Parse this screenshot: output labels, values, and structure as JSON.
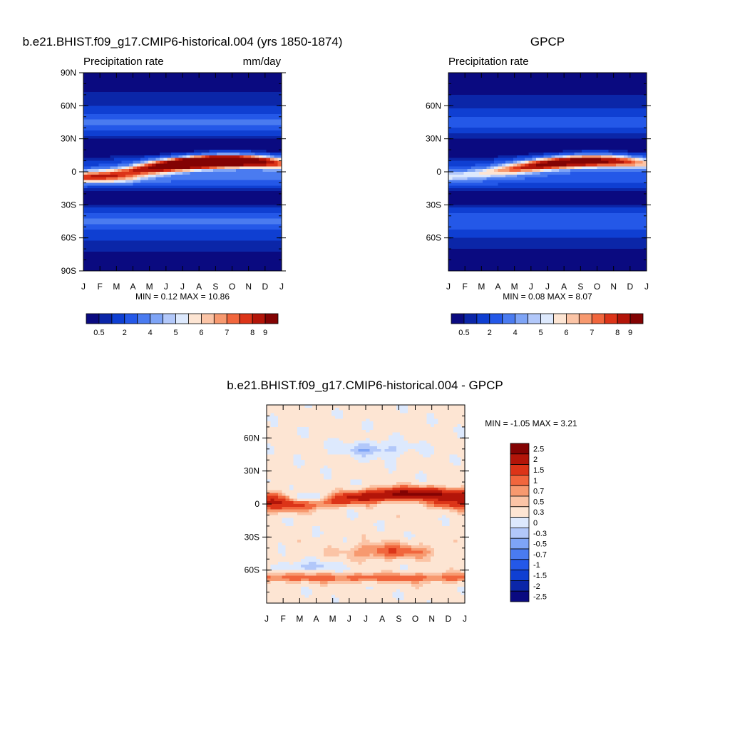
{
  "chart_data": [
    {
      "type": "heatmap",
      "title": "b.e21.BHIST.f09_g17.CMIP6-historical.004 (yrs 1850-1874)",
      "left_label": "Precipitation rate",
      "right_label": "mm/day",
      "x_ticks": [
        "J",
        "F",
        "M",
        "A",
        "M",
        "J",
        "J",
        "A",
        "S",
        "O",
        "N",
        "D",
        "J"
      ],
      "y_ticks": [
        {
          "label": "90N",
          "lat": 90
        },
        {
          "label": "60N",
          "lat": 60
        },
        {
          "label": "30N",
          "lat": 30
        },
        {
          "label": "0",
          "lat": 0
        },
        {
          "label": "30S",
          "lat": -30
        },
        {
          "label": "60S",
          "lat": -60
        },
        {
          "label": "90S",
          "lat": -90
        }
      ],
      "ylim": [
        -90,
        90
      ],
      "stats_text": "MIN =   0.12 MAX =  10.86",
      "min": 0.12,
      "max": 10.86,
      "colorbar": {
        "orientation": "horizontal",
        "colors": [
          "#0a0a80",
          "#0b26a8",
          "#0f3fd2",
          "#2458e8",
          "#4a7bf0",
          "#7ea4f6",
          "#b2c8fa",
          "#dde9fd",
          "#fde5d3",
          "#fbc4a6",
          "#f7996f",
          "#f1663d",
          "#dc3418",
          "#b31509",
          "#830303"
        ],
        "tick_labels": [
          "0.5",
          "2",
          "4",
          "5",
          "6",
          "7",
          "8",
          "9"
        ]
      }
    },
    {
      "type": "heatmap",
      "title": "GPCP",
      "left_label": "Precipitation rate",
      "right_label": "",
      "x_ticks": [
        "J",
        "F",
        "M",
        "A",
        "M",
        "J",
        "J",
        "A",
        "S",
        "O",
        "N",
        "D",
        "J"
      ],
      "y_ticks": [
        {
          "label": "60N",
          "lat": 60
        },
        {
          "label": "30N",
          "lat": 30
        },
        {
          "label": "0",
          "lat": 0
        },
        {
          "label": "30S",
          "lat": -30
        },
        {
          "label": "60S",
          "lat": -60
        }
      ],
      "ylim": [
        -90,
        90
      ],
      "stats_text": "MIN =   0.08 MAX =   8.07",
      "min": 0.08,
      "max": 8.07,
      "colorbar": {
        "orientation": "horizontal",
        "colors": [
          "#0a0a80",
          "#0b26a8",
          "#0f3fd2",
          "#2458e8",
          "#4a7bf0",
          "#7ea4f6",
          "#b2c8fa",
          "#dde9fd",
          "#fde5d3",
          "#fbc4a6",
          "#f7996f",
          "#f1663d",
          "#dc3418",
          "#b31509",
          "#830303"
        ],
        "tick_labels": [
          "0.5",
          "2",
          "4",
          "5",
          "6",
          "7",
          "8",
          "9"
        ]
      }
    },
    {
      "type": "heatmap",
      "title": "b.e21.BHIST.f09_g17.CMIP6-historical.004 - GPCP",
      "left_label": "",
      "right_label": "",
      "x_ticks": [
        "J",
        "F",
        "M",
        "A",
        "M",
        "J",
        "J",
        "A",
        "S",
        "O",
        "N",
        "D",
        "J"
      ],
      "y_ticks": [
        {
          "label": "60N",
          "lat": 60
        },
        {
          "label": "30N",
          "lat": 30
        },
        {
          "label": "0",
          "lat": 0
        },
        {
          "label": "30S",
          "lat": -30
        },
        {
          "label": "60S",
          "lat": -60
        }
      ],
      "ylim": [
        -90,
        90
      ],
      "stats_text": "MIN =  -1.05 MAX =   3.21",
      "min": -1.05,
      "max": 3.21,
      "colorbar": {
        "orientation": "vertical",
        "colors": [
          "#830303",
          "#b31509",
          "#dc3418",
          "#f1663d",
          "#f7996f",
          "#fbc4a6",
          "#fde5d3",
          "#dde9fd",
          "#b2c8fa",
          "#7ea4f6",
          "#4a7bf0",
          "#2458e8",
          "#0f3fd2",
          "#0b26a8",
          "#0a0a80"
        ],
        "tick_labels": [
          "2.5",
          "2",
          "1.5",
          "1",
          "0.7",
          "0.5",
          "0.3",
          "0",
          "-0.3",
          "-0.5",
          "-0.7",
          "-1",
          "-1.5",
          "-2",
          "-2.5"
        ]
      }
    }
  ]
}
